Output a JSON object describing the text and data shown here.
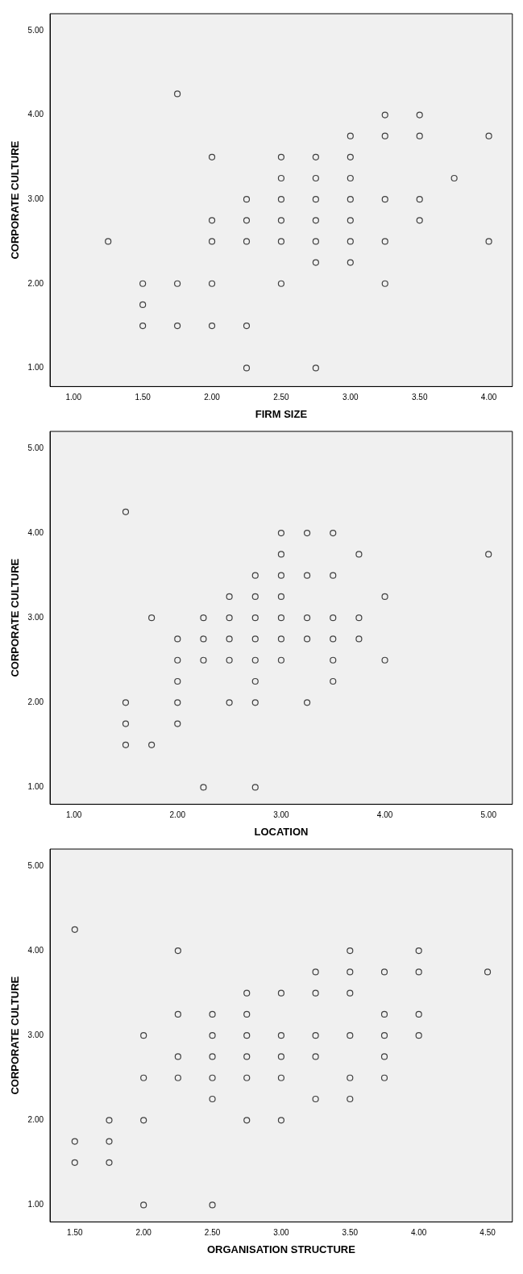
{
  "chart_data": [
    {
      "type": "scatter",
      "xlabel": "FIRM SIZE",
      "ylabel": "CORPORATE CULTURE",
      "marker": "circle",
      "grid": false,
      "legend": false,
      "xlim": [
        0.83,
        4.17
      ],
      "ylim": [
        0.78,
        5.2
      ],
      "xticks": [
        {
          "value": 1,
          "label": "1.00"
        },
        {
          "value": 1.5,
          "label": "1.50"
        },
        {
          "value": 2,
          "label": "2.00"
        },
        {
          "value": 2.5,
          "label": "2.50"
        },
        {
          "value": 3,
          "label": "3.00"
        },
        {
          "value": 3.5,
          "label": "3.50"
        },
        {
          "value": 4,
          "label": "4.00"
        }
      ],
      "yticks": [
        {
          "value": 1,
          "label": "1.00"
        },
        {
          "value": 2,
          "label": "2.00"
        },
        {
          "value": 3,
          "label": "3.00"
        },
        {
          "value": 4,
          "label": "4.00"
        },
        {
          "value": 5,
          "label": "5.00"
        }
      ],
      "series": [
        {
          "color": "#404040",
          "x": [
            1.25,
            1.5,
            1.5,
            1.5,
            1.75,
            1.75,
            1.75,
            2,
            2,
            2,
            2,
            2,
            2.25,
            2.25,
            2.25,
            2.25,
            2.25,
            2.5,
            2.5,
            2.5,
            2.5,
            2.5,
            2.5,
            2.75,
            2.75,
            2.75,
            2.75,
            2.75,
            2.75,
            2.75,
            3,
            3,
            3,
            3,
            3,
            3,
            3,
            3.25,
            3.25,
            3.25,
            3.25,
            3.25,
            3.5,
            3.5,
            3.5,
            3.5,
            3.75,
            4,
            4
          ],
          "values": [
            2.5,
            2,
            1.75,
            1.5,
            4.25,
            2,
            1.5,
            3.5,
            2.75,
            2.5,
            2,
            1.5,
            3,
            2.75,
            2.5,
            1.5,
            1,
            3.5,
            3.25,
            3,
            2.75,
            2.5,
            2,
            3.5,
            3.25,
            3,
            2.75,
            2.5,
            2.25,
            1,
            3.75,
            3.5,
            3.25,
            3,
            2.75,
            2.5,
            2.25,
            4,
            3.75,
            3,
            2.5,
            2,
            4,
            3.75,
            3,
            2.75,
            3.25,
            3.75,
            2.5
          ]
        }
      ]
    },
    {
      "type": "scatter",
      "xlabel": "LOCATION",
      "ylabel": "CORPORATE CULTURE",
      "marker": "circle",
      "grid": false,
      "legend": false,
      "xlim": [
        0.77,
        5.23
      ],
      "ylim": [
        0.8,
        5.2
      ],
      "xticks": [
        {
          "value": 1,
          "label": "1.00"
        },
        {
          "value": 2,
          "label": "2.00"
        },
        {
          "value": 3,
          "label": "3.00"
        },
        {
          "value": 4,
          "label": "4.00"
        },
        {
          "value": 5,
          "label": "5.00"
        }
      ],
      "yticks": [
        {
          "value": 1,
          "label": "1.00"
        },
        {
          "value": 2,
          "label": "2.00"
        },
        {
          "value": 3,
          "label": "3.00"
        },
        {
          "value": 4,
          "label": "4.00"
        },
        {
          "value": 5,
          "label": "5.00"
        }
      ],
      "series": [
        {
          "color": "#404040",
          "x": [
            1.5,
            1.5,
            1.5,
            1.5,
            1.75,
            1.75,
            2,
            2,
            2,
            2,
            2,
            2.25,
            2.25,
            2.25,
            2.25,
            2.5,
            2.5,
            2.5,
            2.5,
            2.5,
            2.75,
            2.75,
            2.75,
            2.75,
            2.75,
            2.75,
            2.75,
            2.75,
            3,
            3,
            3,
            3,
            3,
            3,
            3,
            3.25,
            3.25,
            3.25,
            3.25,
            3.25,
            3.5,
            3.5,
            3.5,
            3.5,
            3.5,
            3.5,
            3.75,
            3.75,
            3.75,
            4,
            4,
            5
          ],
          "values": [
            4.25,
            2,
            1.75,
            1.5,
            3,
            1.5,
            2.75,
            2.5,
            2.25,
            2,
            1.75,
            3,
            2.75,
            2.5,
            1,
            3.25,
            3,
            2.75,
            2.5,
            2,
            3.5,
            3.25,
            3,
            2.75,
            2.5,
            2.25,
            2,
            1,
            4,
            3.75,
            3.5,
            3.25,
            3,
            2.75,
            2.5,
            4,
            3.5,
            3,
            2.75,
            2,
            4,
            3.5,
            3,
            2.75,
            2.5,
            2.25,
            3.75,
            3,
            2.75,
            3.25,
            2.5,
            3.75
          ]
        }
      ]
    },
    {
      "type": "scatter",
      "xlabel": "ORGANISATION STRUCTURE",
      "ylabel": "CORPORATE CULTURE",
      "marker": "circle",
      "grid": false,
      "legend": false,
      "xlim": [
        1.32,
        4.68
      ],
      "ylim": [
        0.8,
        5.2
      ],
      "xticks": [
        {
          "value": 1.5,
          "label": "1.50"
        },
        {
          "value": 2,
          "label": "2.00"
        },
        {
          "value": 2.5,
          "label": "2.50"
        },
        {
          "value": 3,
          "label": "3.00"
        },
        {
          "value": 3.5,
          "label": "3.50"
        },
        {
          "value": 4,
          "label": "4.00"
        },
        {
          "value": 4.5,
          "label": "4.50"
        }
      ],
      "yticks": [
        {
          "value": 1,
          "label": "1.00"
        },
        {
          "value": 2,
          "label": "2.00"
        },
        {
          "value": 3,
          "label": "3.00"
        },
        {
          "value": 4,
          "label": "4.00"
        },
        {
          "value": 5,
          "label": "5.00"
        }
      ],
      "series": [
        {
          "color": "#404040",
          "x": [
            1.5,
            1.5,
            1.5,
            1.75,
            1.75,
            1.75,
            2,
            2,
            2,
            2,
            2.25,
            2.25,
            2.25,
            2.25,
            2.5,
            2.5,
            2.5,
            2.5,
            2.5,
            2.5,
            2.75,
            2.75,
            2.75,
            2.75,
            2.75,
            2.75,
            3,
            3,
            3,
            3,
            3,
            3.25,
            3.25,
            3.25,
            3.25,
            3.25,
            3.5,
            3.5,
            3.5,
            3.5,
            3.5,
            3.5,
            3.75,
            3.75,
            3.75,
            3.75,
            3.75,
            4,
            4,
            4,
            4,
            4.5
          ],
          "values": [
            4.25,
            1.75,
            1.5,
            2,
            1.75,
            1.5,
            3,
            2.5,
            2,
            1,
            4,
            3.25,
            2.75,
            2.5,
            3.25,
            3,
            2.75,
            2.5,
            2.25,
            1,
            3.5,
            3.25,
            3,
            2.75,
            2.5,
            2,
            3.5,
            3,
            2.75,
            2.5,
            2,
            3.75,
            3.5,
            3,
            2.75,
            2.25,
            4,
            3.75,
            3.5,
            3,
            2.5,
            2.25,
            3.75,
            3.25,
            3,
            2.75,
            2.5,
            4,
            3.75,
            3.25,
            3,
            3.75
          ]
        }
      ]
    }
  ]
}
